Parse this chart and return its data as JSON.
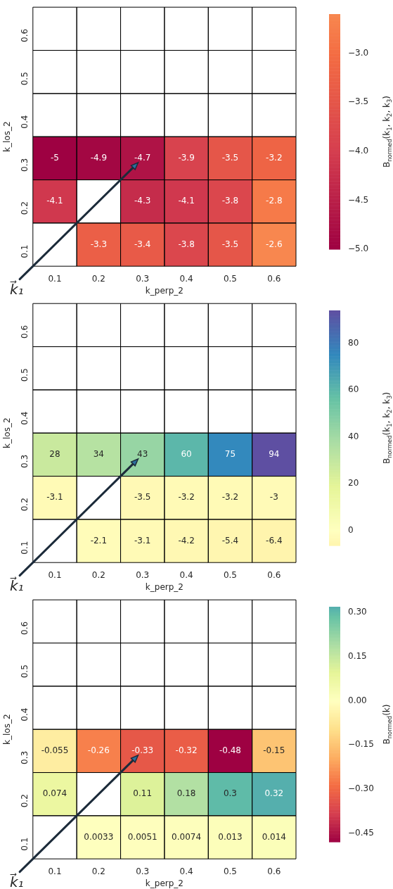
{
  "chart_data": [
    {
      "type": "heatmap",
      "xlabel": "k_perp_2",
      "ylabel": "k_los_2",
      "clabel": "B$_{normed}$(k$_{1}$, k$_{2}$, k$_{3}$)",
      "categories": [
        "0.1",
        "0.2",
        "0.3",
        "0.4",
        "0.5",
        "0.6"
      ],
      "y_categories": [
        "0.6",
        "0.5",
        "0.4",
        "0.3",
        "0.2",
        "0.1"
      ],
      "cells": [
        [
          null,
          null,
          null,
          null,
          null,
          null
        ],
        [
          null,
          null,
          null,
          null,
          null,
          null
        ],
        [
          null,
          null,
          null,
          null,
          null,
          null
        ],
        [
          -5,
          -4.9,
          -4.7,
          -3.9,
          -3.5,
          -3.2
        ],
        [
          -4.1,
          null,
          -4.3,
          -4.1,
          -3.8,
          -2.8
        ],
        [
          null,
          -3.3,
          -3.4,
          -3.8,
          -3.5,
          -2.6
        ]
      ],
      "clim": [
        -5,
        -2.6
      ],
      "cticks": [
        {
          "value": -5,
          "label": "−5.0"
        },
        {
          "value": -4.5,
          "label": "−4.5"
        },
        {
          "value": -4,
          "label": "−4.0"
        },
        {
          "value": -3.5,
          "label": "−3.5"
        },
        {
          "value": -3,
          "label": "−3.0"
        }
      ],
      "data_labels": true,
      "annotations": [
        "k⃗₁"
      ]
    },
    {
      "type": "heatmap",
      "xlabel": "k_perp_2",
      "ylabel": "k_los_2",
      "clabel": "B$_{normed}$(k$_{1}$, k$_{2}$, k$_{3}$)",
      "categories": [
        "0.1",
        "0.2",
        "0.3",
        "0.4",
        "0.5",
        "0.6"
      ],
      "y_categories": [
        "0.6",
        "0.5",
        "0.4",
        "0.3",
        "0.2",
        "0.1"
      ],
      "cells": [
        [
          null,
          null,
          null,
          null,
          null,
          null
        ],
        [
          null,
          null,
          null,
          null,
          null,
          null
        ],
        [
          null,
          null,
          null,
          null,
          null,
          null
        ],
        [
          28,
          34,
          43,
          60,
          75,
          94
        ],
        [
          -3.1,
          null,
          -3.5,
          -3.2,
          -3.2,
          -3
        ],
        [
          null,
          -2.1,
          -3.1,
          -4.2,
          -5.4,
          -6.4
        ]
      ],
      "clim": [
        -6.4,
        94
      ],
      "cticks": [
        0,
        20,
        40,
        60,
        80
      ],
      "data_labels": true,
      "annotations": [
        "k⃗₁"
      ]
    },
    {
      "type": "heatmap",
      "xlabel": "k_perp_2",
      "ylabel": "k_los_2",
      "clabel": "B$_{normed}$(k)",
      "categories": [
        "0.1",
        "0.2",
        "0.3",
        "0.4",
        "0.5",
        "0.6"
      ],
      "y_categories": [
        "0.6",
        "0.5",
        "0.4",
        "0.3",
        "0.2",
        "0.1"
      ],
      "cells": [
        [
          null,
          null,
          null,
          null,
          null,
          null
        ],
        [
          null,
          null,
          null,
          null,
          null,
          null
        ],
        [
          null,
          null,
          null,
          null,
          null,
          null
        ],
        [
          -0.055,
          -0.26,
          -0.33,
          -0.32,
          -0.48,
          -0.15
        ],
        [
          0.074,
          null,
          0.11,
          0.18,
          0.3,
          0.32
        ],
        [
          null,
          0.0033,
          0.0051,
          0.0074,
          0.013,
          0.014
        ]
      ],
      "clim": [
        -0.48,
        0.32
      ],
      "cticks": [
        {
          "value": -0.45,
          "label": "−0.45"
        },
        {
          "value": -0.3,
          "label": "−0.30"
        },
        {
          "value": -0.15,
          "label": "−0.15"
        },
        {
          "value": 0,
          "label": "0.00"
        },
        {
          "value": 0.15,
          "label": "0.15"
        },
        {
          "value": 0.3,
          "label": "0.30"
        }
      ],
      "data_labels": true,
      "annotations": [
        "k⃗₁"
      ]
    }
  ]
}
